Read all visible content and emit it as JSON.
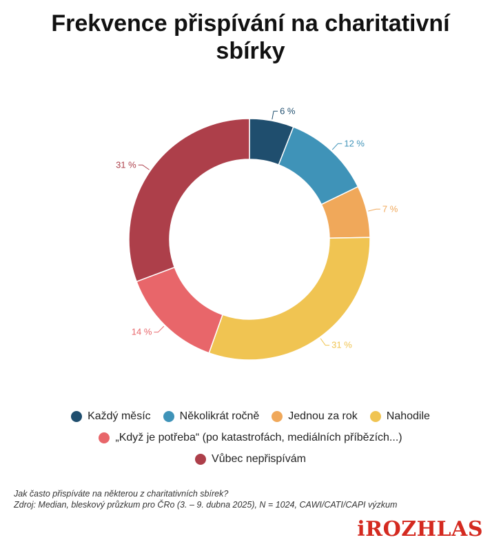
{
  "chart_data": {
    "type": "pie",
    "title": "Frekvence přispívání na charitativní sbírky",
    "categories": [
      "Každý měsíc",
      "Několikrát ročně",
      "Jednou za rok",
      "Nahodile",
      "„Když je potřeba“ (po katastrofách, mediálních příbězích...)",
      "Vůbec nepřispívám"
    ],
    "values": [
      6,
      12,
      7,
      31,
      14,
      31
    ],
    "value_labels": [
      "6 %",
      "12 %",
      "7 %",
      "31 %",
      "14 %",
      "31 %"
    ],
    "colors": [
      "#1f4e6e",
      "#3f93b8",
      "#f0a85a",
      "#f0c452",
      "#e8666a",
      "#ad3f4a"
    ],
    "donut": true,
    "legend_position": "bottom"
  },
  "notes": {
    "question": "Jak často přispíváte na některou z charitativních sbírek?",
    "source": "Zdroj: Median, bleskový průzkum pro ČRo (3. – 9. dubna 2025), N = 1024, CAWI/CATI/CAPI výzkum"
  },
  "brand": {
    "logo_text": "iROZHLAS"
  }
}
